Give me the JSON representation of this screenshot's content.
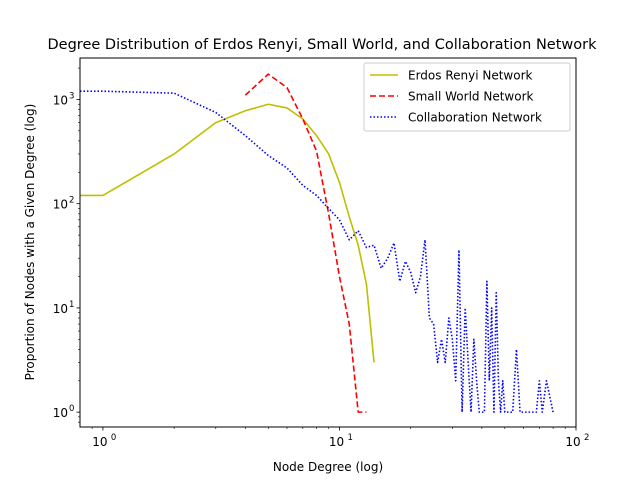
{
  "chart_data": {
    "type": "line",
    "title": "Degree Distribution of Erdos Renyi, Small World, and Collaboration Network",
    "xlabel": "Node Degree (log)",
    "ylabel": "Proportion of Nodes with a Given Degree (log)",
    "xscale": "log",
    "yscale": "log",
    "xlim": [
      0.8,
      100
    ],
    "ylim": [
      0.72,
      2500
    ],
    "x_ticks": [
      {
        "value": 1,
        "label": "10",
        "exp": "0"
      },
      {
        "value": 10,
        "label": "10",
        "exp": "1"
      },
      {
        "value": 100,
        "label": "10",
        "exp": "2"
      }
    ],
    "y_ticks": [
      {
        "value": 1,
        "label": "10",
        "exp": "0"
      },
      {
        "value": 10,
        "label": "10",
        "exp": "1"
      },
      {
        "value": 100,
        "label": "10",
        "exp": "2"
      },
      {
        "value": 1000,
        "label": "10",
        "exp": "3"
      }
    ],
    "grid": false,
    "legend_position": "top-right",
    "series": [
      {
        "name": "Erdos Renyi Network",
        "color": "#bfbf00",
        "dash": "solid",
        "x": [
          0.8,
          1,
          2,
          3,
          4,
          5,
          6,
          7,
          8,
          9,
          10,
          11,
          12,
          13,
          14
        ],
        "y": [
          120,
          120,
          300,
          600,
          780,
          900,
          830,
          650,
          450,
          300,
          160,
          75,
          40,
          17,
          3
        ]
      },
      {
        "name": "Small World Network",
        "color": "#ff0000",
        "dash": "dashed",
        "x": [
          4,
          5,
          6,
          7,
          8,
          9,
          10,
          11,
          12,
          13
        ],
        "y": [
          1100,
          1750,
          1300,
          650,
          320,
          80,
          20,
          7,
          1,
          1
        ]
      },
      {
        "name": "Collaboration Network",
        "color": "#0000ff",
        "dash": "dotted",
        "x": [
          0.8,
          1,
          2,
          3,
          4,
          5,
          6,
          7,
          8,
          9,
          10,
          11,
          12,
          13,
          14,
          15,
          16,
          17,
          18,
          19,
          20,
          21,
          22,
          23,
          24,
          25,
          26,
          27,
          28,
          29,
          30,
          31,
          32,
          33,
          34,
          35,
          36,
          37,
          38,
          39,
          40,
          41,
          42,
          43,
          44,
          45,
          46,
          47,
          48,
          49,
          50,
          52,
          54,
          56,
          58,
          60,
          62,
          65,
          68,
          70,
          72,
          75,
          80
        ],
        "y": [
          1200,
          1200,
          1150,
          750,
          450,
          290,
          220,
          150,
          120,
          90,
          70,
          45,
          55,
          38,
          40,
          24,
          30,
          42,
          18,
          28,
          22,
          14,
          20,
          45,
          8,
          7,
          3,
          5,
          3,
          8,
          5,
          2,
          36,
          1,
          10,
          3,
          1,
          5,
          2,
          1,
          1,
          1,
          18,
          2,
          10,
          1,
          14,
          2,
          1,
          2,
          1,
          1,
          1,
          4,
          1,
          1,
          1,
          1,
          1,
          2,
          1,
          2,
          1
        ]
      }
    ]
  }
}
